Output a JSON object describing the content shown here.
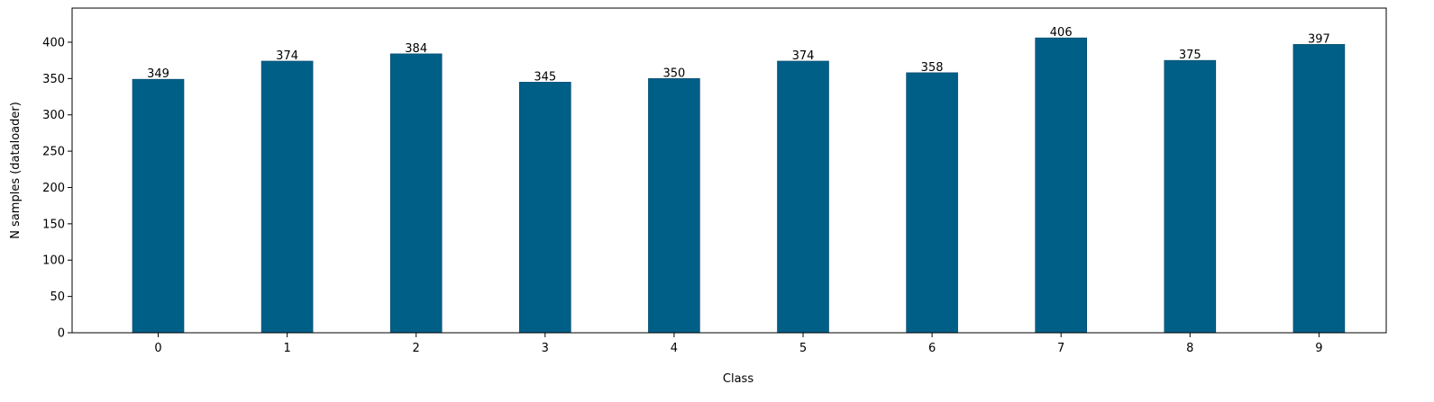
{
  "chart_data": {
    "type": "bar",
    "categories": [
      "0",
      "1",
      "2",
      "3",
      "4",
      "5",
      "6",
      "7",
      "8",
      "9"
    ],
    "values": [
      349,
      374,
      384,
      345,
      350,
      374,
      358,
      406,
      375,
      397
    ],
    "data_labels": [
      "349",
      "374",
      "384",
      "345",
      "350",
      "374",
      "358",
      "406",
      "375",
      "397"
    ],
    "title": "",
    "xlabel": "Class",
    "ylabel": "N samples (dataloader)",
    "ylim": [
      0,
      447
    ],
    "yticks": [
      0,
      50,
      100,
      150,
      200,
      250,
      300,
      350,
      400
    ],
    "ytick_labels": [
      "0",
      "50",
      "100",
      "150",
      "200",
      "250",
      "300",
      "350",
      "400"
    ],
    "grid": false,
    "legend": "none",
    "bar_color": "#005f87",
    "bar_edge_color": "#004466"
  }
}
